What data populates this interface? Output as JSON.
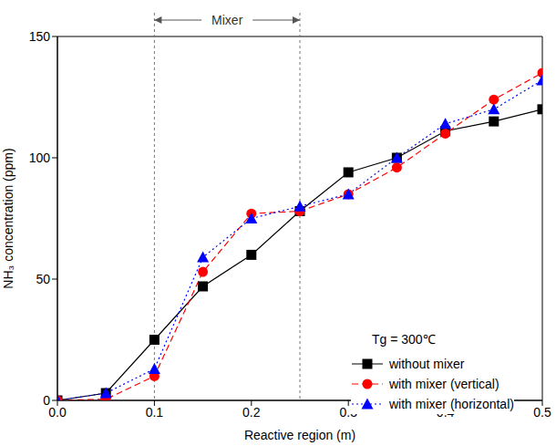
{
  "chart_data": {
    "type": "line",
    "x_label": "Reactive region (m)",
    "y_label": "NH₃ concentration (ppm)",
    "x": [
      0,
      0.05,
      0.1,
      0.15,
      0.2,
      0.25,
      0.3,
      0.35,
      0.4,
      0.45,
      0.5
    ],
    "series": [
      {
        "name": "without mixer",
        "color": "#000000",
        "marker": "square",
        "line_style": "solid",
        "values": [
          0,
          3,
          25,
          47,
          60,
          78,
          94,
          100,
          111,
          115,
          120
        ]
      },
      {
        "name": "with mixer (vertical)",
        "color": "#ff0000",
        "marker": "circle",
        "line_style": "dashed",
        "values": [
          0,
          0.5,
          10,
          53,
          77,
          78,
          85,
          96,
          110,
          124,
          135
        ]
      },
      {
        "name": "with mixer (horizontal)",
        "color": "#0000ff",
        "marker": "triangle",
        "line_style": "dotted",
        "values": [
          0,
          3,
          13,
          59,
          75,
          80,
          85,
          100,
          114,
          120,
          132
        ]
      }
    ],
    "xlim": [
      0,
      0.5
    ],
    "xticks": [
      {
        "value": 0,
        "label": "0.0"
      },
      0.1,
      0.2,
      0.3,
      0.4,
      0.5
    ],
    "ylim": [
      0,
      150
    ],
    "yticks": [
      0,
      50,
      100,
      150
    ],
    "grid": false,
    "legend": "lower right",
    "annotations": [
      {
        "text": "Mixer",
        "x": [
          0.1,
          0.25
        ]
      },
      {
        "text": "Tg = 300℃"
      }
    ]
  }
}
